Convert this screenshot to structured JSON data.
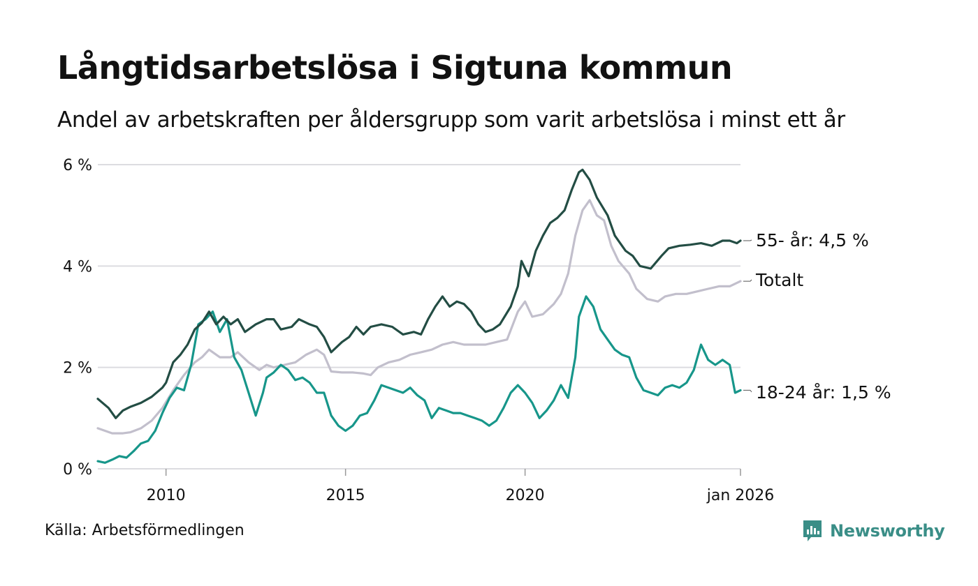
{
  "title": "Långtidsarbetslösa i Sigtuna kommun",
  "subtitle": "Andel av arbetskraften per åldersgrupp som varit arbetslösa i minst ett år",
  "source": "Källa: Arbetsförmedlingen",
  "brand": {
    "name": "Newsworthy",
    "icon": "newsworthy-logo-icon"
  },
  "colors": {
    "s55": "#234d44",
    "total": "#c2bfcc",
    "s1824": "#17968a",
    "grid": "#dcdce0",
    "brand": "#3a8e87"
  },
  "chart_data": {
    "type": "line",
    "title": "Långtidsarbetslösa i Sigtuna kommun",
    "ylabel": "",
    "xlabel": "",
    "ylim": [
      0,
      6
    ],
    "xlim": [
      2008.1,
      2026.0
    ],
    "y_ticks": [
      {
        "value": 0,
        "label": "0 %"
      },
      {
        "value": 2,
        "label": "2 %"
      },
      {
        "value": 4,
        "label": "4 %"
      },
      {
        "value": 6,
        "label": "6 %"
      }
    ],
    "x_ticks": [
      {
        "value": 2010,
        "label": "2010"
      },
      {
        "value": 2015,
        "label": "2015"
      },
      {
        "value": 2020,
        "label": "2020"
      },
      {
        "value": 2026,
        "label": "jan 2026"
      }
    ],
    "series": [
      {
        "name": "55- år",
        "key": "s55",
        "end_label": "55- år: 4,5 %",
        "points": [
          [
            2008.1,
            1.38
          ],
          [
            2008.4,
            1.2
          ],
          [
            2008.6,
            1.0
          ],
          [
            2008.8,
            1.15
          ],
          [
            2009.0,
            1.22
          ],
          [
            2009.3,
            1.3
          ],
          [
            2009.6,
            1.42
          ],
          [
            2009.9,
            1.6
          ],
          [
            2010.0,
            1.7
          ],
          [
            2010.2,
            2.1
          ],
          [
            2010.4,
            2.25
          ],
          [
            2010.6,
            2.45
          ],
          [
            2010.8,
            2.75
          ],
          [
            2011.0,
            2.88
          ],
          [
            2011.2,
            3.1
          ],
          [
            2011.4,
            2.85
          ],
          [
            2011.6,
            3.0
          ],
          [
            2011.8,
            2.85
          ],
          [
            2012.0,
            2.95
          ],
          [
            2012.2,
            2.7
          ],
          [
            2012.5,
            2.85
          ],
          [
            2012.8,
            2.95
          ],
          [
            2013.0,
            2.95
          ],
          [
            2013.2,
            2.75
          ],
          [
            2013.5,
            2.8
          ],
          [
            2013.7,
            2.95
          ],
          [
            2014.0,
            2.85
          ],
          [
            2014.2,
            2.8
          ],
          [
            2014.4,
            2.6
          ],
          [
            2014.6,
            2.3
          ],
          [
            2014.9,
            2.5
          ],
          [
            2015.1,
            2.6
          ],
          [
            2015.3,
            2.8
          ],
          [
            2015.5,
            2.65
          ],
          [
            2015.7,
            2.8
          ],
          [
            2016.0,
            2.85
          ],
          [
            2016.3,
            2.8
          ],
          [
            2016.6,
            2.65
          ],
          [
            2016.9,
            2.7
          ],
          [
            2017.1,
            2.65
          ],
          [
            2017.3,
            2.95
          ],
          [
            2017.5,
            3.2
          ],
          [
            2017.7,
            3.4
          ],
          [
            2017.9,
            3.2
          ],
          [
            2018.1,
            3.3
          ],
          [
            2018.3,
            3.25
          ],
          [
            2018.5,
            3.1
          ],
          [
            2018.7,
            2.85
          ],
          [
            2018.9,
            2.7
          ],
          [
            2019.1,
            2.75
          ],
          [
            2019.3,
            2.85
          ],
          [
            2019.6,
            3.2
          ],
          [
            2019.8,
            3.6
          ],
          [
            2019.9,
            4.1
          ],
          [
            2020.1,
            3.8
          ],
          [
            2020.3,
            4.3
          ],
          [
            2020.5,
            4.6
          ],
          [
            2020.7,
            4.85
          ],
          [
            2020.9,
            4.95
          ],
          [
            2021.1,
            5.1
          ],
          [
            2021.3,
            5.5
          ],
          [
            2021.5,
            5.85
          ],
          [
            2021.6,
            5.9
          ],
          [
            2021.8,
            5.7
          ],
          [
            2022.0,
            5.35
          ],
          [
            2022.3,
            5.0
          ],
          [
            2022.5,
            4.6
          ],
          [
            2022.8,
            4.3
          ],
          [
            2023.0,
            4.2
          ],
          [
            2023.2,
            4.0
          ],
          [
            2023.5,
            3.95
          ],
          [
            2023.8,
            4.2
          ],
          [
            2024.0,
            4.35
          ],
          [
            2024.3,
            4.4
          ],
          [
            2024.6,
            4.42
          ],
          [
            2024.9,
            4.45
          ],
          [
            2025.2,
            4.4
          ],
          [
            2025.5,
            4.5
          ],
          [
            2025.7,
            4.5
          ],
          [
            2025.9,
            4.45
          ],
          [
            2026.0,
            4.5
          ]
        ]
      },
      {
        "name": "Totalt",
        "key": "total",
        "end_label": "Totalt",
        "points": [
          [
            2008.1,
            0.8
          ],
          [
            2008.3,
            0.75
          ],
          [
            2008.5,
            0.7
          ],
          [
            2008.8,
            0.7
          ],
          [
            2009.0,
            0.72
          ],
          [
            2009.3,
            0.8
          ],
          [
            2009.6,
            0.95
          ],
          [
            2009.9,
            1.2
          ],
          [
            2010.2,
            1.55
          ],
          [
            2010.5,
            1.85
          ],
          [
            2010.8,
            2.1
          ],
          [
            2011.0,
            2.2
          ],
          [
            2011.2,
            2.35
          ],
          [
            2011.5,
            2.2
          ],
          [
            2011.8,
            2.2
          ],
          [
            2012.0,
            2.3
          ],
          [
            2012.3,
            2.1
          ],
          [
            2012.6,
            1.95
          ],
          [
            2012.8,
            2.05
          ],
          [
            2013.0,
            2.0
          ],
          [
            2013.3,
            2.05
          ],
          [
            2013.6,
            2.1
          ],
          [
            2013.9,
            2.25
          ],
          [
            2014.2,
            2.35
          ],
          [
            2014.4,
            2.25
          ],
          [
            2014.6,
            1.92
          ],
          [
            2014.9,
            1.9
          ],
          [
            2015.2,
            1.9
          ],
          [
            2015.5,
            1.88
          ],
          [
            2015.7,
            1.85
          ],
          [
            2015.9,
            2.0
          ],
          [
            2016.2,
            2.1
          ],
          [
            2016.5,
            2.15
          ],
          [
            2016.8,
            2.25
          ],
          [
            2017.1,
            2.3
          ],
          [
            2017.4,
            2.35
          ],
          [
            2017.7,
            2.45
          ],
          [
            2018.0,
            2.5
          ],
          [
            2018.3,
            2.45
          ],
          [
            2018.6,
            2.45
          ],
          [
            2018.9,
            2.45
          ],
          [
            2019.2,
            2.5
          ],
          [
            2019.5,
            2.55
          ],
          [
            2019.8,
            3.1
          ],
          [
            2020.0,
            3.3
          ],
          [
            2020.2,
            3.0
          ],
          [
            2020.5,
            3.05
          ],
          [
            2020.8,
            3.25
          ],
          [
            2021.0,
            3.45
          ],
          [
            2021.2,
            3.85
          ],
          [
            2021.4,
            4.6
          ],
          [
            2021.6,
            5.1
          ],
          [
            2021.8,
            5.3
          ],
          [
            2022.0,
            5.0
          ],
          [
            2022.2,
            4.9
          ],
          [
            2022.4,
            4.4
          ],
          [
            2022.6,
            4.1
          ],
          [
            2022.9,
            3.85
          ],
          [
            2023.1,
            3.55
          ],
          [
            2023.4,
            3.35
          ],
          [
            2023.7,
            3.3
          ],
          [
            2023.9,
            3.4
          ],
          [
            2024.2,
            3.45
          ],
          [
            2024.5,
            3.45
          ],
          [
            2024.8,
            3.5
          ],
          [
            2025.1,
            3.55
          ],
          [
            2025.4,
            3.6
          ],
          [
            2025.7,
            3.6
          ],
          [
            2026.0,
            3.7
          ]
        ]
      },
      {
        "name": "18-24 år",
        "key": "s1824",
        "end_label": "18-24 år: 1,5 %",
        "points": [
          [
            2008.1,
            0.15
          ],
          [
            2008.3,
            0.12
          ],
          [
            2008.5,
            0.18
          ],
          [
            2008.7,
            0.25
          ],
          [
            2008.9,
            0.22
          ],
          [
            2009.1,
            0.35
          ],
          [
            2009.3,
            0.5
          ],
          [
            2009.5,
            0.55
          ],
          [
            2009.7,
            0.75
          ],
          [
            2009.9,
            1.1
          ],
          [
            2010.1,
            1.4
          ],
          [
            2010.3,
            1.6
          ],
          [
            2010.5,
            1.55
          ],
          [
            2010.7,
            2.05
          ],
          [
            2010.8,
            2.45
          ],
          [
            2010.9,
            2.85
          ],
          [
            2011.1,
            2.95
          ],
          [
            2011.3,
            3.1
          ],
          [
            2011.5,
            2.7
          ],
          [
            2011.7,
            2.95
          ],
          [
            2011.9,
            2.2
          ],
          [
            2012.1,
            1.95
          ],
          [
            2012.3,
            1.5
          ],
          [
            2012.5,
            1.05
          ],
          [
            2012.7,
            1.5
          ],
          [
            2012.8,
            1.8
          ],
          [
            2013.0,
            1.9
          ],
          [
            2013.2,
            2.05
          ],
          [
            2013.4,
            1.95
          ],
          [
            2013.6,
            1.75
          ],
          [
            2013.8,
            1.8
          ],
          [
            2014.0,
            1.7
          ],
          [
            2014.2,
            1.5
          ],
          [
            2014.4,
            1.5
          ],
          [
            2014.6,
            1.05
          ],
          [
            2014.8,
            0.85
          ],
          [
            2015.0,
            0.75
          ],
          [
            2015.2,
            0.85
          ],
          [
            2015.4,
            1.05
          ],
          [
            2015.6,
            1.1
          ],
          [
            2015.8,
            1.35
          ],
          [
            2016.0,
            1.65
          ],
          [
            2016.2,
            1.6
          ],
          [
            2016.4,
            1.55
          ],
          [
            2016.6,
            1.5
          ],
          [
            2016.8,
            1.6
          ],
          [
            2017.0,
            1.45
          ],
          [
            2017.2,
            1.35
          ],
          [
            2017.4,
            1.0
          ],
          [
            2017.6,
            1.2
          ],
          [
            2017.8,
            1.15
          ],
          [
            2018.0,
            1.1
          ],
          [
            2018.2,
            1.1
          ],
          [
            2018.4,
            1.05
          ],
          [
            2018.6,
            1.0
          ],
          [
            2018.8,
            0.95
          ],
          [
            2019.0,
            0.85
          ],
          [
            2019.2,
            0.95
          ],
          [
            2019.4,
            1.2
          ],
          [
            2019.6,
            1.5
          ],
          [
            2019.8,
            1.65
          ],
          [
            2020.0,
            1.5
          ],
          [
            2020.2,
            1.3
          ],
          [
            2020.4,
            1.0
          ],
          [
            2020.6,
            1.15
          ],
          [
            2020.8,
            1.35
          ],
          [
            2021.0,
            1.65
          ],
          [
            2021.2,
            1.4
          ],
          [
            2021.4,
            2.2
          ],
          [
            2021.5,
            3.0
          ],
          [
            2021.7,
            3.4
          ],
          [
            2021.9,
            3.2
          ],
          [
            2022.1,
            2.75
          ],
          [
            2022.3,
            2.55
          ],
          [
            2022.5,
            2.35
          ],
          [
            2022.7,
            2.25
          ],
          [
            2022.9,
            2.2
          ],
          [
            2023.1,
            1.8
          ],
          [
            2023.3,
            1.55
          ],
          [
            2023.5,
            1.5
          ],
          [
            2023.7,
            1.45
          ],
          [
            2023.9,
            1.6
          ],
          [
            2024.1,
            1.65
          ],
          [
            2024.3,
            1.6
          ],
          [
            2024.5,
            1.7
          ],
          [
            2024.7,
            1.95
          ],
          [
            2024.9,
            2.45
          ],
          [
            2025.1,
            2.15
          ],
          [
            2025.3,
            2.05
          ],
          [
            2025.5,
            2.15
          ],
          [
            2025.7,
            2.05
          ],
          [
            2025.85,
            1.5
          ],
          [
            2026.0,
            1.55
          ]
        ]
      }
    ]
  }
}
